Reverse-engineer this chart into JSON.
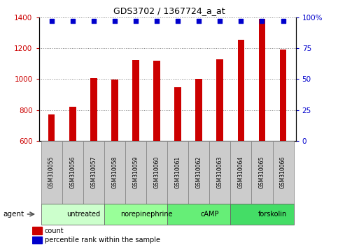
{
  "title": "GDS3702 / 1367724_a_at",
  "samples": [
    "GSM310055",
    "GSM310056",
    "GSM310057",
    "GSM310058",
    "GSM310059",
    "GSM310060",
    "GSM310061",
    "GSM310062",
    "GSM310063",
    "GSM310064",
    "GSM310065",
    "GSM310066"
  ],
  "counts": [
    770,
    820,
    1005,
    995,
    1125,
    1120,
    945,
    1000,
    1130,
    1255,
    1390,
    1190
  ],
  "percentiles": [
    97,
    97,
    97,
    97,
    97,
    97,
    97,
    97,
    97,
    97,
    97,
    97
  ],
  "bar_color": "#cc0000",
  "dot_color": "#0000cc",
  "ylim_left": [
    600,
    1400
  ],
  "ylim_right": [
    0,
    100
  ],
  "yticks_left": [
    600,
    800,
    1000,
    1200,
    1400
  ],
  "yticks_right": [
    0,
    25,
    50,
    75,
    100
  ],
  "yticklabels_right": [
    "0",
    "25",
    "50",
    "75",
    "100%"
  ],
  "groups": [
    {
      "label": "untreated",
      "start": 0,
      "end": 3,
      "color": "#ccffcc"
    },
    {
      "label": "norepinephrine",
      "start": 3,
      "end": 6,
      "color": "#99ff99"
    },
    {
      "label": "cAMP",
      "start": 6,
      "end": 9,
      "color": "#66ee77"
    },
    {
      "label": "forskolin",
      "start": 9,
      "end": 12,
      "color": "#44dd66"
    }
  ],
  "agent_label": "agent",
  "legend_count_label": "count",
  "legend_percentile_label": "percentile rank within the sample",
  "tick_label_color_left": "#cc0000",
  "tick_label_color_right": "#0000cc",
  "bar_width": 0.32,
  "dot_size": 22,
  "sample_box_color": "#cccccc",
  "sample_box_edge": "#888888",
  "group_box_edge": "#666666",
  "grid_color": "#000000",
  "grid_alpha": 0.5
}
